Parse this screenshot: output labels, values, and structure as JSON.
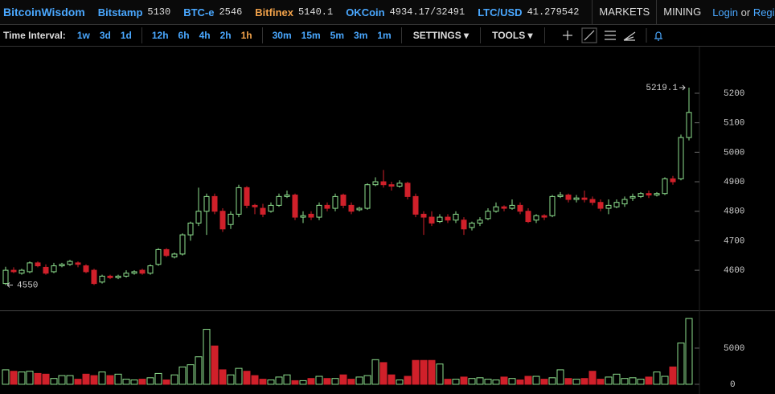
{
  "header": {
    "brand": "BitcoinWisdom",
    "tickers": [
      {
        "name": "Bitstamp",
        "price": "5130"
      },
      {
        "name": "BTC-e",
        "price": "2546"
      },
      {
        "name": "Bitfinex",
        "price": "5140.1"
      },
      {
        "name": "OKCoin",
        "price": "4934.17/32491"
      },
      {
        "name": "LTC/USD",
        "price": "41.279542"
      }
    ],
    "menus": [
      "MARKETS",
      "MINING"
    ],
    "login": "Login",
    "or": "or",
    "register": "Regis"
  },
  "toolbar": {
    "label": "Time Interval:",
    "intervals": [
      "1w",
      "3d",
      "1d",
      "12h",
      "6h",
      "4h",
      "2h",
      "1h",
      "30m",
      "15m",
      "5m",
      "3m",
      "1m"
    ],
    "active": "1h",
    "settings": "SETTINGS",
    "tools": "TOOLS"
  },
  "chart_data": {
    "type": "candlestick",
    "up_color": "#8ee08e",
    "down_color": "#d0202a",
    "open": [
      4555,
      4600,
      4590,
      4595,
      4625,
      4610,
      4595,
      4615,
      4620,
      4625,
      4615,
      4600,
      4560,
      4580,
      4575,
      4580,
      4590,
      4600,
      4590,
      4620,
      4670,
      4645,
      4655,
      4720,
      4760,
      4800,
      4850,
      4800,
      4755,
      4790,
      4880,
      4820,
      4810,
      4800,
      4820,
      4850,
      4855,
      4780,
      4790,
      4780,
      4820,
      4810,
      4855,
      4820,
      4805,
      4810,
      4890,
      4900,
      4890,
      4885,
      4895,
      4850,
      4790,
      4780,
      4765,
      4780,
      4770,
      4770,
      4745,
      4760,
      4775,
      4800,
      4815,
      4810,
      4820,
      4800,
      4770,
      4785,
      4785,
      4850,
      4855,
      4840,
      4845,
      4840,
      4830,
      4810,
      4815,
      4825,
      4845,
      4850,
      4860,
      4855,
      4860,
      4910,
      4910,
      5050
    ],
    "high": [
      4612,
      4610,
      4605,
      4630,
      4630,
      4620,
      4625,
      4625,
      4635,
      4630,
      4620,
      4605,
      4585,
      4585,
      4585,
      4600,
      4600,
      4605,
      4620,
      4675,
      4675,
      4660,
      4725,
      4765,
      4880,
      4860,
      4860,
      4810,
      4800,
      4890,
      4885,
      4825,
      4825,
      4830,
      4860,
      4870,
      4860,
      4800,
      4800,
      4830,
      4830,
      4860,
      4860,
      4830,
      4815,
      4895,
      4915,
      4940,
      4900,
      4905,
      4900,
      4860,
      4800,
      4800,
      4790,
      4790,
      4800,
      4780,
      4765,
      4780,
      4810,
      4830,
      4820,
      4840,
      4830,
      4810,
      4790,
      4790,
      4855,
      4865,
      4860,
      4855,
      4870,
      4850,
      4840,
      4840,
      4840,
      4850,
      4860,
      4865,
      4870,
      4865,
      4915,
      4920,
      5060,
      5219.1
    ],
    "low": [
      4550,
      4590,
      4585,
      4590,
      4610,
      4585,
      4590,
      4610,
      4615,
      4610,
      4590,
      4550,
      4555,
      4570,
      4570,
      4575,
      4585,
      4585,
      4585,
      4615,
      4645,
      4640,
      4650,
      4700,
      4750,
      4720,
      4790,
      4730,
      4740,
      4780,
      4810,
      4790,
      4780,
      4795,
      4815,
      4845,
      4770,
      4760,
      4770,
      4770,
      4800,
      4800,
      4810,
      4790,
      4800,
      4805,
      4885,
      4880,
      4870,
      4880,
      4840,
      4780,
      4720,
      4750,
      4760,
      4760,
      4760,
      4720,
      4735,
      4750,
      4770,
      4795,
      4800,
      4805,
      4790,
      4760,
      4760,
      4770,
      4780,
      4845,
      4830,
      4830,
      4830,
      4820,
      4800,
      4790,
      4810,
      4815,
      4835,
      4845,
      4845,
      4850,
      4855,
      4890,
      4905,
      5040
    ],
    "close": [
      4600,
      4595,
      4600,
      4625,
      4615,
      4590,
      4615,
      4620,
      4630,
      4620,
      4595,
      4555,
      4580,
      4575,
      4580,
      4590,
      4595,
      4590,
      4615,
      4670,
      4650,
      4655,
      4720,
      4760,
      4800,
      4850,
      4800,
      4740,
      4790,
      4880,
      4820,
      4815,
      4790,
      4820,
      4850,
      4855,
      4780,
      4785,
      4780,
      4820,
      4810,
      4850,
      4820,
      4800,
      4810,
      4890,
      4900,
      4890,
      4885,
      4895,
      4850,
      4790,
      4780,
      4760,
      4780,
      4770,
      4790,
      4740,
      4760,
      4770,
      4800,
      4815,
      4810,
      4820,
      4800,
      4765,
      4785,
      4780,
      4850,
      4855,
      4840,
      4845,
      4840,
      4830,
      4810,
      4820,
      4830,
      4840,
      4850,
      4860,
      4855,
      4860,
      4910,
      4900,
      5050,
      5135
    ],
    "volume": [
      2000,
      1800,
      1700,
      1800,
      1500,
      1400,
      800,
      1200,
      1200,
      700,
      1400,
      1200,
      1700,
      1200,
      1400,
      700,
      600,
      700,
      900,
      1500,
      600,
      1300,
      2400,
      2700,
      3800,
      7600,
      5300,
      2000,
      1300,
      2200,
      1800,
      1200,
      700,
      600,
      1000,
      1300,
      500,
      500,
      800,
      1100,
      800,
      800,
      1300,
      700,
      1000,
      1200,
      3400,
      3000,
      1300,
      600,
      1100,
      3300,
      3300,
      3300,
      2800,
      700,
      700,
      1000,
      800,
      900,
      700,
      600,
      1000,
      800,
      600,
      1100,
      1100,
      700,
      900,
      2000,
      800,
      700,
      800,
      1800,
      700,
      1000,
      1400,
      800,
      900,
      700,
      1000,
      1700,
      1100,
      2400,
      5700,
      9100
    ],
    "ylim": [
      4464,
      5358
    ],
    "yticks": [
      4600,
      4700,
      4800,
      4900,
      5000,
      5100,
      5200
    ],
    "y2lim": [
      -900,
      10000
    ],
    "y2ticks": [
      0,
      5000
    ],
    "high_label": 5219.1,
    "low_label": 4550
  }
}
